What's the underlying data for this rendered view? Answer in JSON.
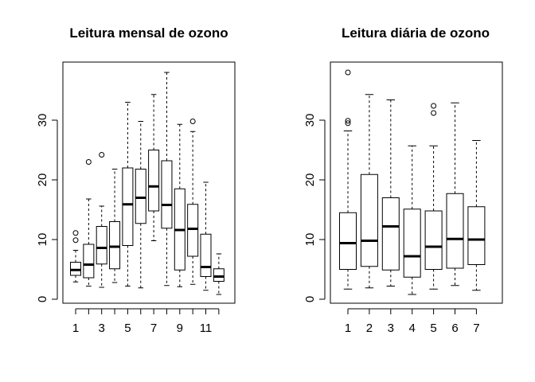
{
  "chart_data": [
    {
      "type": "box",
      "title": "Leitura mensal de ozono",
      "xlabel": "",
      "ylabel": "",
      "ylim": [
        0,
        38
      ],
      "y_ticks": [
        0,
        10,
        20,
        30
      ],
      "x_tick_labels": [
        "1",
        "3",
        "5",
        "7",
        "9",
        "11"
      ],
      "categories": [
        "1",
        "2",
        "3",
        "4",
        "5",
        "6",
        "7",
        "8",
        "9",
        "10",
        "11",
        "12"
      ],
      "boxes": [
        {
          "label": "1",
          "low": 2.9,
          "q1": 4.0,
          "median": 4.9,
          "q3": 6.2,
          "high": 8.2,
          "outliers": [
            9.9,
            11.1
          ]
        },
        {
          "label": "2",
          "low": 2.2,
          "q1": 3.6,
          "median": 5.8,
          "q3": 9.2,
          "high": 16.8,
          "outliers": [
            23.0
          ]
        },
        {
          "label": "3",
          "low": 2.0,
          "q1": 5.9,
          "median": 8.6,
          "q3": 12.2,
          "high": 15.6,
          "outliers": [
            24.2
          ]
        },
        {
          "label": "4",
          "low": 2.8,
          "q1": 5.1,
          "median": 8.8,
          "q3": 13.0,
          "high": 21.8,
          "outliers": []
        },
        {
          "label": "5",
          "low": 2.2,
          "q1": 9.0,
          "median": 15.9,
          "q3": 22.0,
          "high": 33.0,
          "outliers": []
        },
        {
          "label": "6",
          "low": 1.9,
          "q1": 12.7,
          "median": 17.0,
          "q3": 21.8,
          "high": 29.8,
          "outliers": []
        },
        {
          "label": "7",
          "low": 9.8,
          "q1": 14.8,
          "median": 18.9,
          "q3": 25.0,
          "high": 34.3,
          "outliers": []
        },
        {
          "label": "8",
          "low": 2.3,
          "q1": 11.9,
          "median": 15.8,
          "q3": 23.2,
          "high": 38.0,
          "outliers": []
        },
        {
          "label": "9",
          "low": 2.1,
          "q1": 4.9,
          "median": 11.6,
          "q3": 18.5,
          "high": 29.3,
          "outliers": []
        },
        {
          "label": "10",
          "low": 2.5,
          "q1": 7.2,
          "median": 11.8,
          "q3": 15.9,
          "high": 28.1,
          "outliers": [
            29.8
          ]
        },
        {
          "label": "11",
          "low": 1.5,
          "q1": 3.8,
          "median": 5.4,
          "q3": 10.9,
          "high": 19.6,
          "outliers": []
        },
        {
          "label": "12",
          "low": 0.8,
          "q1": 3.0,
          "median": 3.8,
          "q3": 5.1,
          "high": 7.6,
          "outliers": []
        }
      ]
    },
    {
      "type": "box",
      "title": "Leitura diária de ozono",
      "xlabel": "",
      "ylabel": "",
      "ylim": [
        0,
        38
      ],
      "y_ticks": [
        0,
        10,
        20,
        30
      ],
      "x_tick_labels": [
        "1",
        "2",
        "3",
        "4",
        "5",
        "6",
        "7"
      ],
      "categories": [
        "1",
        "2",
        "3",
        "4",
        "5",
        "6",
        "7"
      ],
      "boxes": [
        {
          "label": "1",
          "low": 1.7,
          "q1": 5.0,
          "median": 9.4,
          "q3": 14.5,
          "high": 28.2,
          "outliers": [
            29.5,
            29.9,
            38.0
          ]
        },
        {
          "label": "2",
          "low": 1.9,
          "q1": 5.5,
          "median": 9.8,
          "q3": 20.9,
          "high": 34.3,
          "outliers": []
        },
        {
          "label": "3",
          "low": 2.2,
          "q1": 4.9,
          "median": 12.2,
          "q3": 17.0,
          "high": 33.4,
          "outliers": []
        },
        {
          "label": "4",
          "low": 0.8,
          "q1": 3.7,
          "median": 7.2,
          "q3": 15.1,
          "high": 25.7,
          "outliers": []
        },
        {
          "label": "5",
          "low": 1.7,
          "q1": 5.0,
          "median": 8.8,
          "q3": 14.8,
          "high": 25.7,
          "outliers": [
            31.2,
            32.4
          ]
        },
        {
          "label": "6",
          "low": 2.3,
          "q1": 5.2,
          "median": 10.1,
          "q3": 17.7,
          "high": 32.9,
          "outliers": []
        },
        {
          "label": "7",
          "low": 1.5,
          "q1": 5.8,
          "median": 10.0,
          "q3": 15.5,
          "high": 26.6,
          "outliers": []
        }
      ]
    }
  ]
}
